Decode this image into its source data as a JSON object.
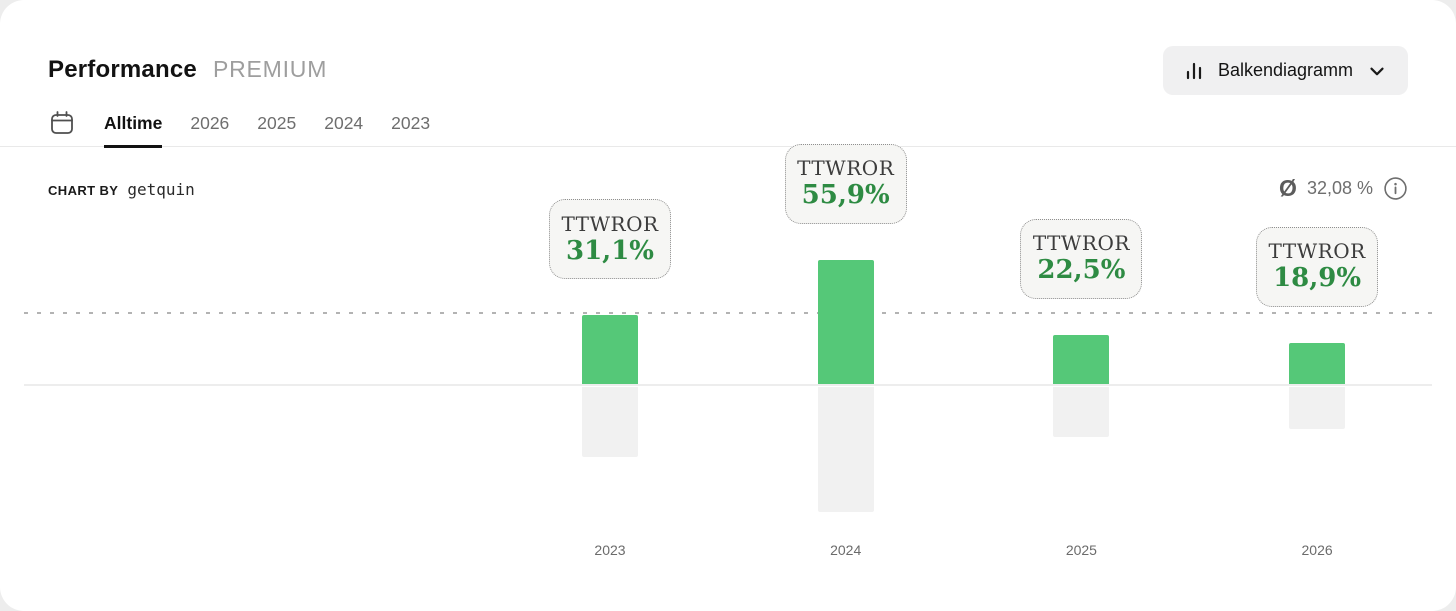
{
  "header": {
    "title": "Performance",
    "badge": "PREMIUM",
    "chart_type_selector": {
      "label": "Balkendiagramm",
      "icon": "bar-chart-icon",
      "chevron": "chevron-down-icon"
    }
  },
  "tabs": {
    "calendar_icon": "calendar-icon",
    "items": [
      {
        "label": "Alltime",
        "active": true
      },
      {
        "label": "2026",
        "active": false
      },
      {
        "label": "2025",
        "active": false
      },
      {
        "label": "2024",
        "active": false
      },
      {
        "label": "2023",
        "active": false
      }
    ]
  },
  "attribution": {
    "prefix": "CHART BY",
    "brand": "getquin"
  },
  "average_row": {
    "symbol": "Ø",
    "value": "32,08 %",
    "info_icon": "info-icon"
  },
  "chart_data": {
    "type": "bar",
    "title": "Performance TTWROR by year",
    "categories": [
      "2023",
      "2024",
      "2025",
      "2026"
    ],
    "series": [
      {
        "name": "TTWROR",
        "values": [
          31.1,
          55.9,
          22.5,
          18.9
        ],
        "value_labels": [
          "31,1%",
          "55,9%",
          "22,5%",
          "18,9%"
        ]
      }
    ],
    "average": 32.08,
    "average_label": "32,08 %",
    "unit": "%",
    "ylim": [
      0,
      60
    ],
    "baseline": 0,
    "grid": "single dotted average line above zero axis",
    "legend_position": "none",
    "shadow_bars": "gray mirror of each green bar below the zero axis",
    "colors": {
      "bar": "#55c878",
      "bar_shadow": "#f1f1f1",
      "value_text": "#2e8b43",
      "axis_line": "#ededed",
      "average_line": "#b3b3b3"
    }
  }
}
